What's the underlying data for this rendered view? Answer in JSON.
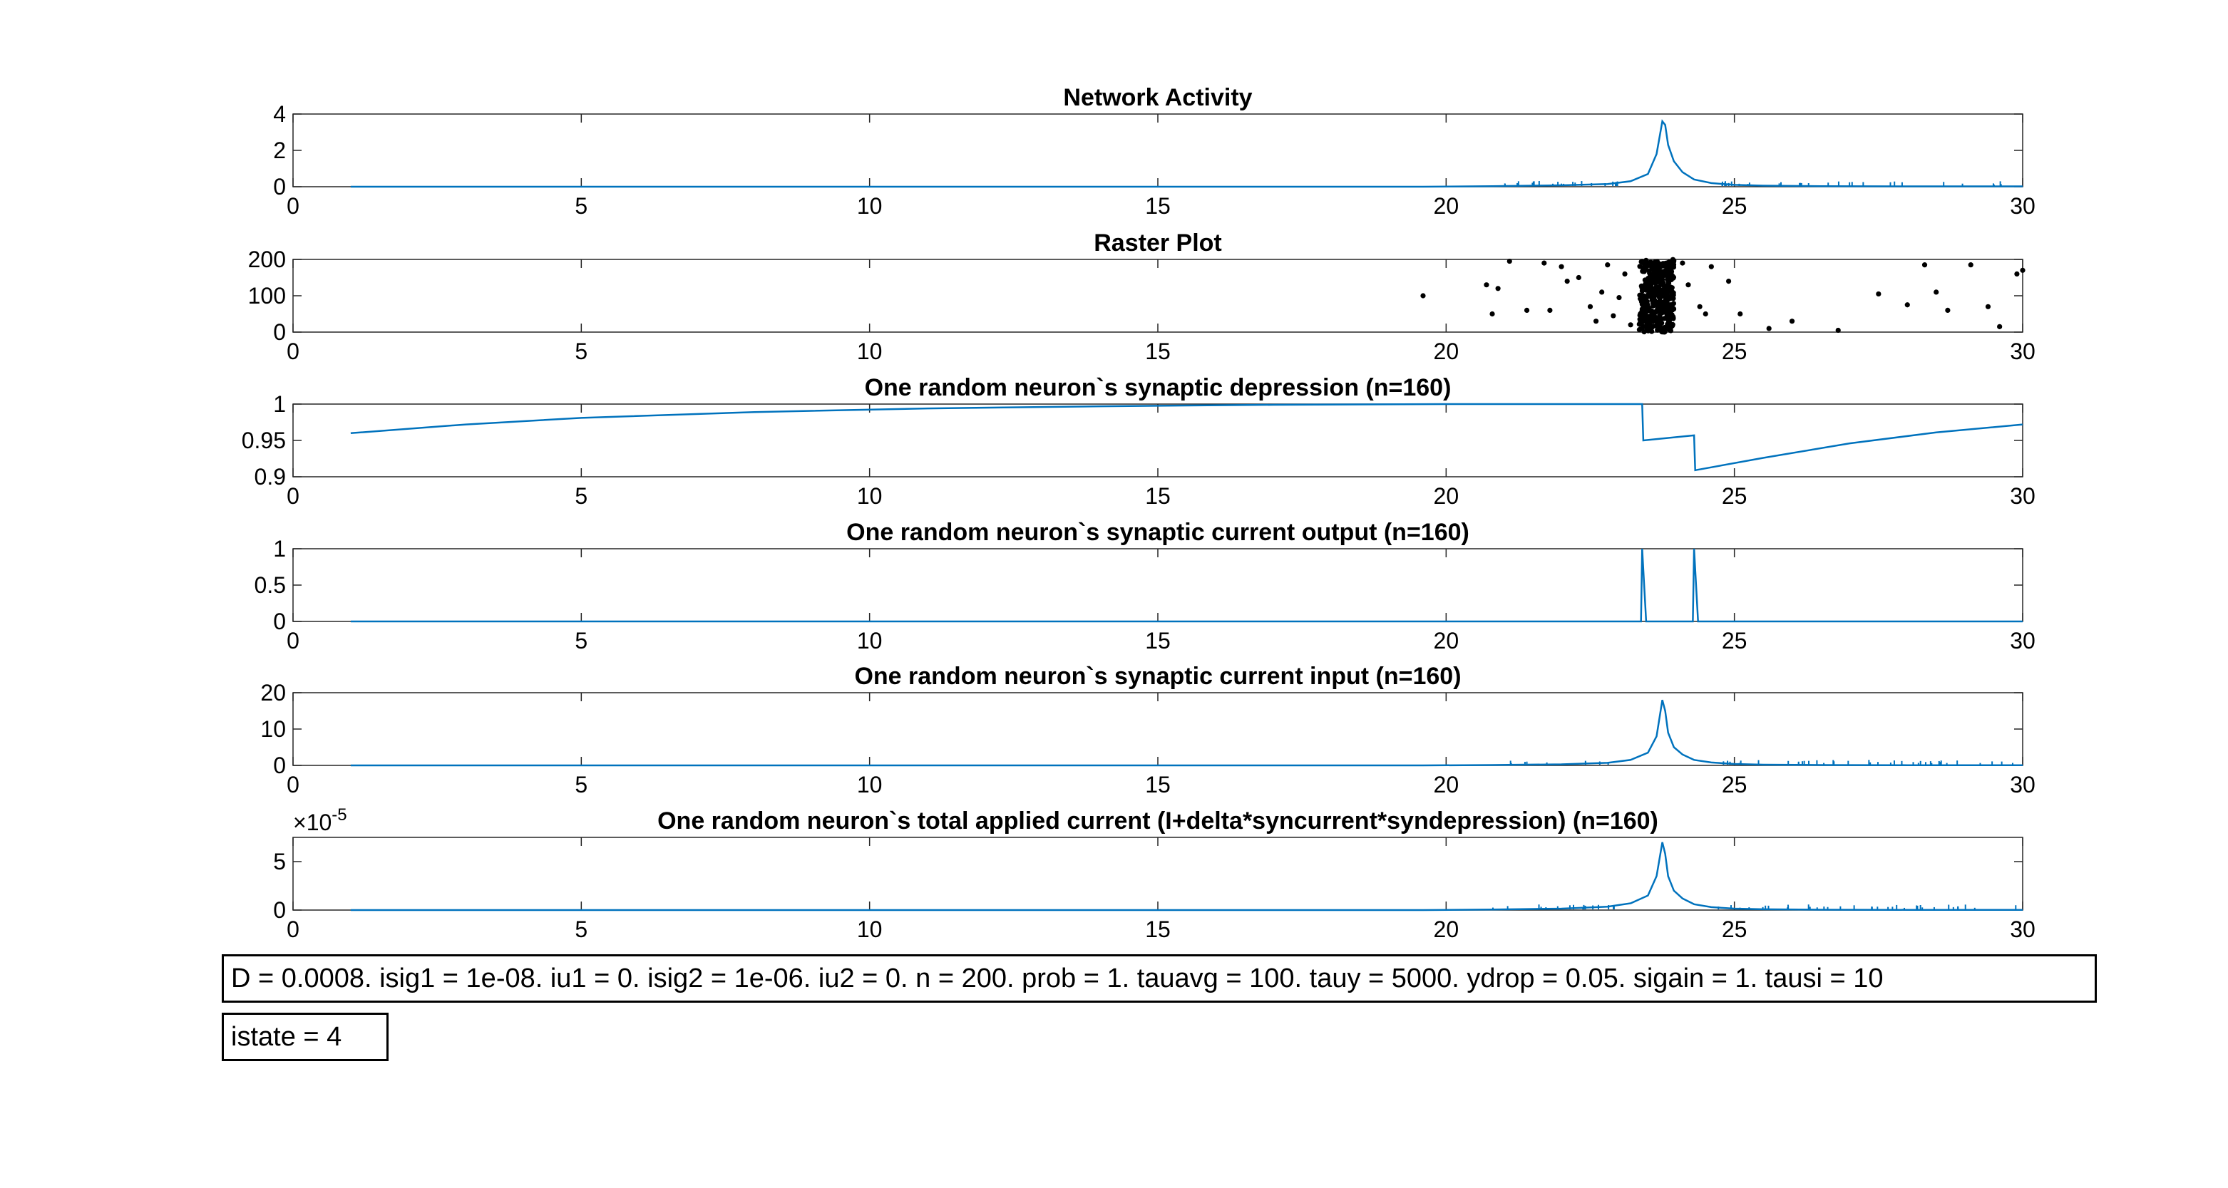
{
  "colors": {
    "line": "#0072BD",
    "dots": "#000000",
    "axes": "#262626",
    "background": "#ffffff"
  },
  "chart_data": [
    {
      "type": "line",
      "title": "Network Activity",
      "xlim": [
        0,
        30
      ],
      "ylim": [
        0,
        4
      ],
      "xticks": [
        0,
        5,
        10,
        15,
        20,
        25,
        30
      ],
      "yticks": [
        0,
        2,
        4
      ],
      "yticklabels": [
        "0",
        "2",
        "4"
      ],
      "series": [
        {
          "x": [
            1,
            19.6,
            20.8,
            22.0,
            22.8,
            23.2,
            23.5,
            23.65,
            23.75,
            23.8,
            23.85,
            23.95,
            24.1,
            24.3,
            24.6,
            25.0,
            25.5,
            26.5,
            28,
            30
          ],
          "y": [
            0,
            0,
            0.03,
            0.08,
            0.15,
            0.3,
            0.7,
            1.8,
            3.6,
            3.4,
            2.3,
            1.4,
            0.8,
            0.4,
            0.2,
            0.1,
            0.06,
            0.03,
            0.02,
            0.02
          ]
        }
      ]
    },
    {
      "type": "scatter",
      "title": "Raster Plot",
      "xlim": [
        0,
        30
      ],
      "ylim": [
        0,
        200
      ],
      "xticks": [
        0,
        5,
        10,
        15,
        20,
        25,
        30
      ],
      "yticks": [
        0,
        100,
        200
      ],
      "yticklabels": [
        "0",
        "100",
        "200"
      ],
      "series": [
        {
          "x": [
            19.6,
            20.7,
            20.8,
            20.9,
            21.1,
            21.4,
            21.7,
            21.8,
            22.0,
            22.1,
            22.3,
            22.5,
            22.6,
            22.7,
            22.8,
            22.9,
            23.0,
            23.1,
            23.2,
            24.1,
            24.2,
            24.4,
            24.5,
            24.6,
            24.9,
            25.1,
            25.6,
            26.0,
            26.8,
            27.5,
            28.0,
            28.3,
            28.5,
            28.7,
            29.1,
            29.4,
            29.6,
            29.9,
            30.0
          ],
          "y": [
            100,
            130,
            50,
            120,
            195,
            60,
            190,
            60,
            180,
            140,
            150,
            70,
            30,
            110,
            185,
            45,
            95,
            160,
            20,
            190,
            130,
            70,
            50,
            180,
            140,
            50,
            10,
            30,
            5,
            105,
            75,
            185,
            110,
            60,
            185,
            70,
            15,
            160,
            170
          ]
        }
      ],
      "dense_burst": {
        "x_range": [
          23.35,
          23.95
        ],
        "y_range": [
          0,
          200
        ]
      }
    },
    {
      "type": "line",
      "title": "One random neuron`s synaptic depression (n=160)",
      "xlim": [
        0,
        30
      ],
      "ylim": [
        0.9,
        1
      ],
      "xticks": [
        0,
        5,
        10,
        15,
        20,
        25,
        30
      ],
      "yticks": [
        0.9,
        0.95,
        1
      ],
      "yticklabels": [
        "0.9",
        "0.95",
        "1"
      ],
      "series": [
        {
          "x": [
            1,
            3,
            5,
            8,
            11,
            14,
            17,
            20,
            23.4,
            23.42,
            24.3,
            24.32,
            25.5,
            27,
            28.5,
            30
          ],
          "y": [
            0.96,
            0.972,
            0.981,
            0.989,
            0.994,
            0.997,
            0.999,
            1.0,
            1.0,
            0.95,
            0.957,
            0.909,
            0.926,
            0.946,
            0.961,
            0.972
          ]
        }
      ]
    },
    {
      "type": "line",
      "title": "One random neuron`s synaptic current output (n=160)",
      "xlim": [
        0,
        30
      ],
      "ylim": [
        0,
        1
      ],
      "xticks": [
        0,
        5,
        10,
        15,
        20,
        25,
        30
      ],
      "yticks": [
        0,
        0.5,
        1
      ],
      "yticklabels": [
        "0",
        "0.5",
        "1"
      ],
      "series": [
        {
          "x": [
            1,
            23.38,
            23.4,
            23.47,
            24.28,
            24.3,
            24.37,
            30
          ],
          "y": [
            0,
            0,
            1,
            0,
            0,
            1,
            0,
            0
          ]
        }
      ]
    },
    {
      "type": "line",
      "title": "One random neuron`s synaptic current input (n=160)",
      "xlim": [
        0,
        30
      ],
      "ylim": [
        0,
        20
      ],
      "xticks": [
        0,
        5,
        10,
        15,
        20,
        25,
        30
      ],
      "yticks": [
        0,
        10,
        20
      ],
      "yticklabels": [
        "0",
        "10",
        "20"
      ],
      "series": [
        {
          "x": [
            1,
            19.6,
            20.8,
            22.0,
            22.8,
            23.2,
            23.5,
            23.65,
            23.75,
            23.8,
            23.85,
            23.95,
            24.1,
            24.3,
            24.6,
            25.0,
            25.5,
            26.5,
            28,
            30
          ],
          "y": [
            0,
            0,
            0.1,
            0.3,
            0.7,
            1.5,
            3.5,
            8,
            18,
            15,
            9,
            5,
            3,
            1.5,
            0.8,
            0.4,
            0.2,
            0.1,
            0.05,
            0.05
          ]
        }
      ]
    },
    {
      "type": "line",
      "title": "One random neuron`s total applied current (I+delta*syncurrent*syndepression) (n=160)",
      "exponent_label": "×10",
      "exponent_power": "-5",
      "xlim": [
        0,
        30
      ],
      "ylim": [
        0,
        7.5
      ],
      "xticks": [
        0,
        5,
        10,
        15,
        20,
        25,
        30
      ],
      "yticks": [
        0,
        5
      ],
      "yticklabels": [
        "0",
        "5"
      ],
      "series": [
        {
          "x": [
            1,
            19.6,
            20.8,
            22.0,
            22.8,
            23.2,
            23.5,
            23.65,
            23.75,
            23.8,
            23.85,
            23.95,
            24.1,
            24.3,
            24.6,
            25.0,
            25.5,
            26.5,
            28,
            30
          ],
          "y": [
            0,
            0,
            0.05,
            0.15,
            0.35,
            0.7,
            1.5,
            3.5,
            7.0,
            5.8,
            3.5,
            2.0,
            1.2,
            0.6,
            0.3,
            0.15,
            0.08,
            0.04,
            0.02,
            0.02
          ]
        }
      ]
    }
  ],
  "annotations": {
    "params": "D = 0.0008. isig1 = 1e-08. iu1 = 0. isig2 = 1e-06. iu2 = 0. n = 200. prob = 1. tauavg = 100. tauy = 5000. ydrop = 0.05. sigain = 1. tausi = 10",
    "istate": "istate = 4"
  }
}
